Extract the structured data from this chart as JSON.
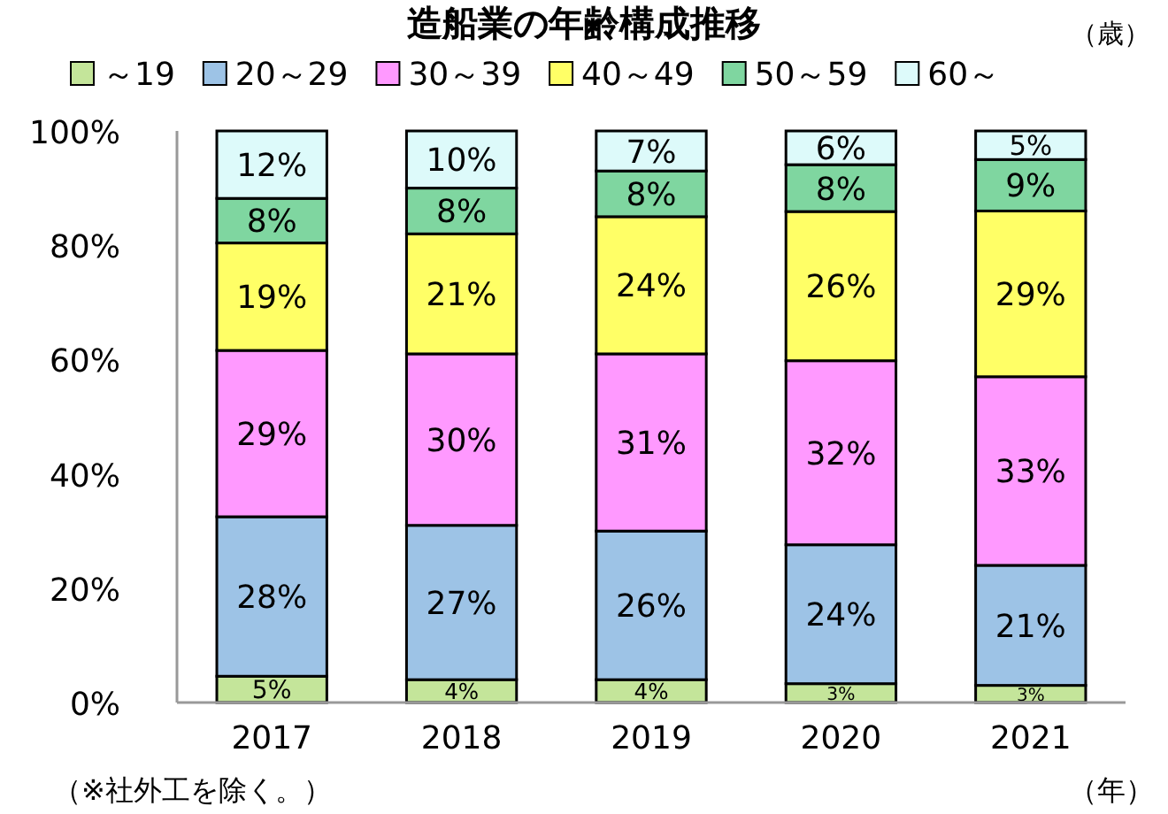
{
  "chart_data": {
    "type": "bar",
    "title": "造船業の年齢構成推移",
    "legend_title": "（歳）",
    "xlabel": "（年）",
    "annotations": [
      "（※社外工を除く。）"
    ],
    "categories": [
      "2017",
      "2018",
      "2019",
      "2020",
      "2021"
    ],
    "stacked": true,
    "legend": "top",
    "grid": false,
    "ylim": [
      0,
      100
    ],
    "yticks": [
      {
        "value": 0,
        "label": "0%"
      },
      {
        "value": 20,
        "label": "20%"
      },
      {
        "value": 40,
        "label": "40%"
      },
      {
        "value": 60,
        "label": "60%"
      },
      {
        "value": 80,
        "label": "80%"
      },
      {
        "value": 100,
        "label": "100%"
      }
    ],
    "series": [
      {
        "name": "～19",
        "color": "#c4e59a",
        "values": [
          4.6,
          4,
          4,
          3.3,
          3
        ],
        "value_labels": [
          "5%",
          "4%",
          "4%",
          "3%",
          "3%"
        ]
      },
      {
        "name": "20～29",
        "color": "#9dc3e6",
        "values": [
          27.9,
          27,
          26,
          24.3,
          21
        ],
        "value_labels": [
          "28%",
          "27%",
          "26%",
          "24%",
          "21%"
        ]
      },
      {
        "name": "30～39",
        "color": "#ff99ff",
        "values": [
          29.1,
          30,
          31,
          32.2,
          33
        ],
        "value_labels": [
          "29%",
          "30%",
          "31%",
          "32%",
          "33%"
        ]
      },
      {
        "name": "40～49",
        "color": "#ffff66",
        "values": [
          18.8,
          21,
          24,
          26.1,
          29
        ],
        "value_labels": [
          "19%",
          "21%",
          "24%",
          "26%",
          "29%"
        ]
      },
      {
        "name": "50～59",
        "color": "#7fd6a0",
        "values": [
          7.8,
          8,
          8,
          8.2,
          9
        ],
        "value_labels": [
          "8%",
          "8%",
          "8%",
          "8%",
          "9%"
        ]
      },
      {
        "name": "60～",
        "color": "#ddfafa",
        "values": [
          11.8,
          10,
          7,
          5.9,
          5
        ],
        "value_labels": [
          "12%",
          "10%",
          "7%",
          "6%",
          "5%"
        ]
      }
    ]
  }
}
